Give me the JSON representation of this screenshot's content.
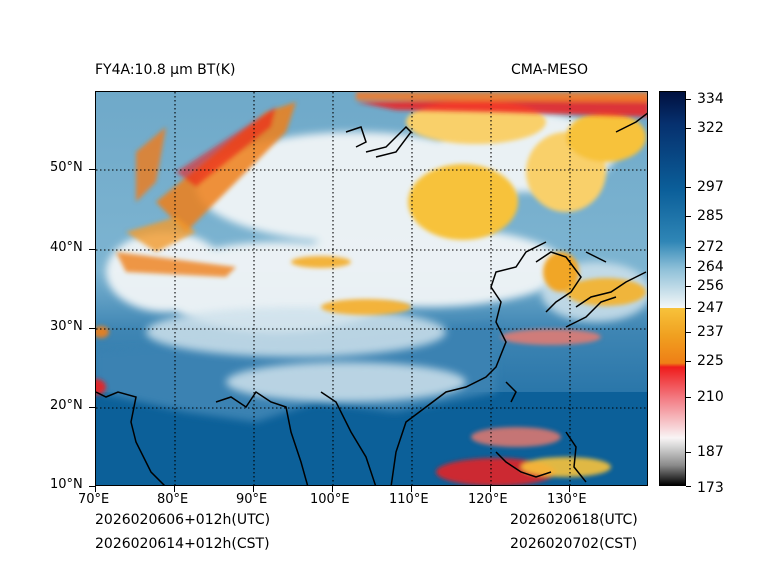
{
  "title_left": "FY4A:10.8 μm BT(K)",
  "title_right": "CMA-MESO",
  "lat_labels": [
    "10°N",
    "20°N",
    "30°N",
    "40°N",
    "50°N"
  ],
  "lon_labels": [
    "70°E",
    "80°E",
    "90°E",
    "100°E",
    "110°E",
    "120°E",
    "130°E"
  ],
  "colorbar": {
    "unit": "K",
    "ticks": [
      "334",
      "322",
      "297",
      "285",
      "272",
      "264",
      "256",
      "247",
      "237",
      "225",
      "210",
      "187",
      "173"
    ],
    "colors": {
      "deep_blue": "#00103f",
      "blue": "#0b5f9a",
      "light_blue": "#8ec0d8",
      "white": "#f4f7f8",
      "yellow": "#f7c23a",
      "orange": "#ef7f16",
      "red": "#ef1c1c",
      "pink": "#f9d0d4",
      "gray": "#9a9a9a",
      "black": "#000000"
    }
  },
  "footer": {
    "left_line1": "2026020606+012h(UTC)",
    "left_line2": "2026020614+012h(CST)",
    "right_line1": "2026020618(UTC)",
    "right_line2": "2026020702(CST)"
  }
}
